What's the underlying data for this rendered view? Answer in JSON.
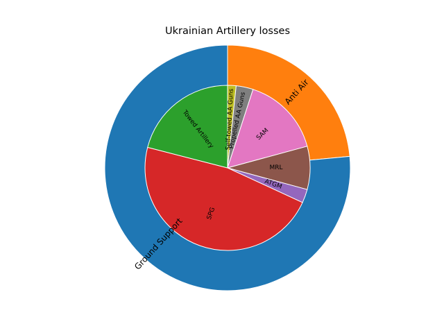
{
  "chart_data": {
    "type": "pie",
    "title": "Ukrainian Artillery losses",
    "outer": {
      "categories": [
        "Anti Air",
        "Ground Support"
      ],
      "values": [
        23.5,
        76.5
      ],
      "colors": [
        "#ff7f0e",
        "#1f77b4"
      ]
    },
    "inner": {
      "categories": [
        "Self-towed AA Guns",
        "Propelled AA Guns",
        "SAM",
        "MRL",
        "ATGM",
        "SPG",
        "Towed Artillery"
      ],
      "values": [
        1.5,
        3.0,
        14.2,
        7.6,
        2.4,
        42.4,
        18.9
      ],
      "colors": [
        "#bcbd22",
        "#7f7f7f",
        "#e377c2",
        "#8c564b",
        "#9467bd",
        "#d62728",
        "#2ca02c"
      ]
    }
  }
}
